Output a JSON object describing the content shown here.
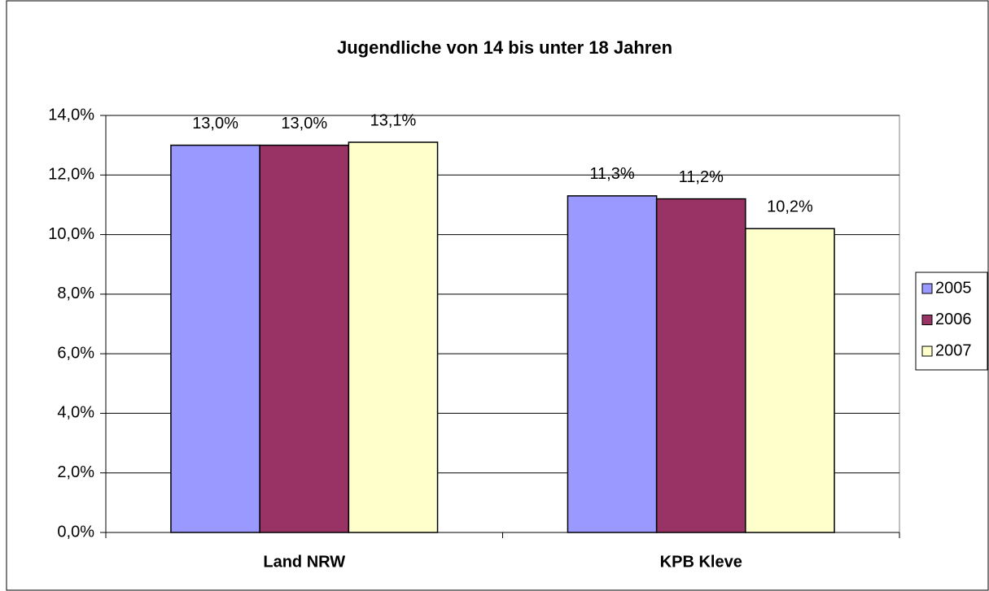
{
  "chart_data": {
    "type": "bar",
    "title": "Jugendliche von 14 bis unter 18 Jahren",
    "categories": [
      "Land NRW",
      "KPB Kleve"
    ],
    "series": [
      {
        "name": "2005",
        "color": "#9999ff",
        "values": [
          13.0,
          11.3
        ],
        "value_labels": [
          "13,0%",
          "11,3%"
        ]
      },
      {
        "name": "2006",
        "color": "#993366",
        "values": [
          13.0,
          11.2
        ],
        "value_labels": [
          "13,0%",
          "11,2%"
        ]
      },
      {
        "name": "2007",
        "color": "#ffffcc",
        "values": [
          13.1,
          10.2
        ],
        "value_labels": [
          "13,1%",
          "10,2%"
        ]
      }
    ],
    "ylim": [
      0,
      14
    ],
    "yticks": [
      {
        "value": 0,
        "label": "0,0%"
      },
      {
        "value": 2,
        "label": "2,0%"
      },
      {
        "value": 4,
        "label": "4,0%"
      },
      {
        "value": 6,
        "label": "6,0%"
      },
      {
        "value": 8,
        "label": "8,0%"
      },
      {
        "value": 10,
        "label": "10,0%"
      },
      {
        "value": 12,
        "label": "12,0%"
      },
      {
        "value": 14,
        "label": "14,0%"
      }
    ],
    "grid": true,
    "legend": "right"
  }
}
